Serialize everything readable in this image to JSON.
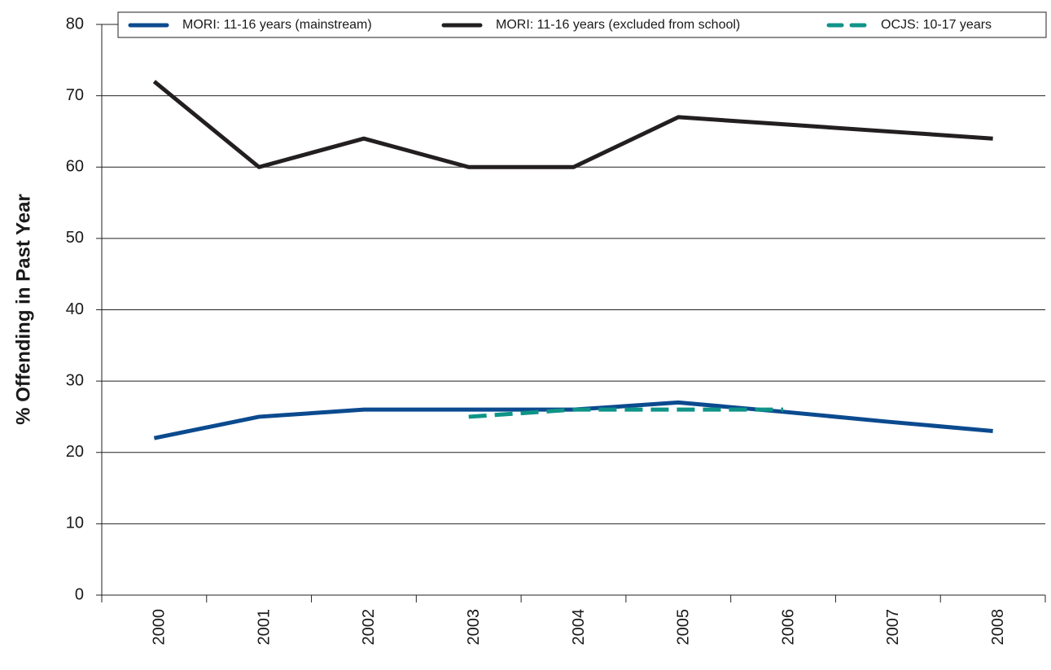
{
  "chart_data": {
    "type": "line",
    "y_label": "% Offending in Past Year",
    "categories": [
      "2000",
      "2001",
      "2002",
      "2003",
      "2004",
      "2005",
      "2006",
      "2007",
      "2008"
    ],
    "series": [
      {
        "name": "MORI: 11-16 years (mainstream)",
        "color": "#0b4a8f",
        "dash": false,
        "values": [
          22,
          25,
          26,
          26,
          26,
          27,
          25.7,
          24.3,
          23
        ]
      },
      {
        "name": "MORI: 11-16 years (excluded from school)",
        "color": "#231f20",
        "dash": false,
        "values": [
          72,
          60,
          64,
          60,
          60,
          67,
          66,
          65,
          64
        ]
      },
      {
        "name": "OCJS: 10-17 years",
        "color": "#0f9488",
        "dash": true,
        "values": [
          null,
          null,
          null,
          25,
          26,
          26,
          26,
          null,
          null
        ]
      }
    ],
    "ylim": [
      0,
      80
    ],
    "yticks": [
      0,
      10,
      20,
      30,
      40,
      50,
      60,
      70,
      80
    ],
    "grid": true
  }
}
